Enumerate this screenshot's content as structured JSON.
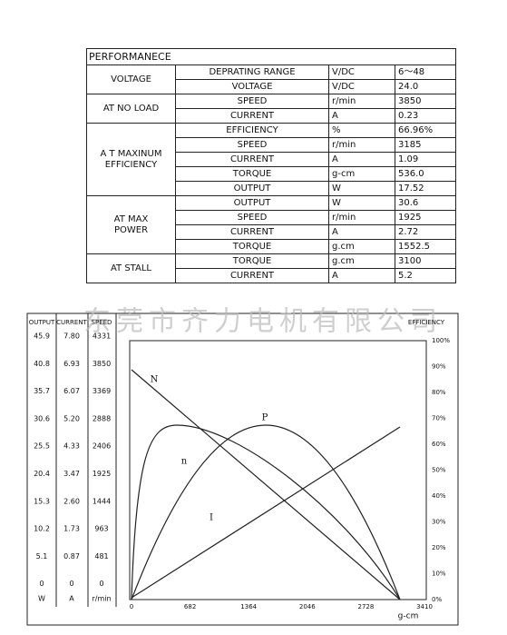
{
  "table": {
    "title": "PERFORMANECE",
    "groups": [
      {
        "label": [
          "VOLTAGE"
        ],
        "rows": [
          [
            "DEPRATING RANGE",
            "V/DC",
            "6～48"
          ],
          [
            "VOLTAGE",
            "V/DC",
            "24.0"
          ]
        ]
      },
      {
        "label": [
          "AT NO LOAD"
        ],
        "rows": [
          [
            "SPEED",
            "r/min",
            "3850"
          ],
          [
            "CURRENT",
            "A",
            "0.23"
          ]
        ]
      },
      {
        "label": [
          "A T MAXINUM",
          "EFFICIENCY"
        ],
        "rows": [
          [
            "EFFICIENCY",
            "%",
            "66.96%"
          ],
          [
            "SPEED",
            "r/min",
            "3185"
          ],
          [
            "CURRENT",
            "A",
            "1.09"
          ],
          [
            "TORQUE",
            "g-cm",
            "536.0"
          ],
          [
            "OUTPUT",
            "W",
            "17.52"
          ]
        ]
      },
      {
        "label": [
          "AT MAX",
          "POWER"
        ],
        "rows": [
          [
            "OUTPUT",
            "W",
            "30.6"
          ],
          [
            "SPEED",
            "r/min",
            "1925"
          ],
          [
            "CURRENT",
            "A",
            "2.72"
          ],
          [
            "TORQUE",
            "g.cm",
            "1552.5"
          ]
        ]
      },
      {
        "label": [
          "AT STALL"
        ],
        "rows": [
          [
            "TORQUE",
            "g.cm",
            "3100"
          ],
          [
            "CURRENT",
            "A",
            "5.2"
          ]
        ]
      }
    ]
  },
  "chart": {
    "watermark": "东莞市齐力电机有限公司",
    "left_headers": [
      "OUTPUT",
      "CURRENT",
      "SPEED"
    ],
    "left_rows": [
      [
        "45.9",
        "7.80",
        "4331"
      ],
      [
        "40.8",
        "6.93",
        "3850"
      ],
      [
        "35.7",
        "6.07",
        "3369"
      ],
      [
        "30.6",
        "5.20",
        "2888"
      ],
      [
        "25.5",
        "4.33",
        "2406"
      ],
      [
        "20.4",
        "3.47",
        "1925"
      ],
      [
        "15.3",
        "2.60",
        "1444"
      ],
      [
        "10.2",
        "1.73",
        "963"
      ],
      [
        "5.1",
        "0.87",
        "481"
      ],
      [
        "0",
        "0",
        "0"
      ]
    ],
    "left_units": [
      "W",
      "A",
      "r/min"
    ],
    "right_header": "EFFICIENCY",
    "right_ticks": [
      "100%",
      "90%",
      "80%",
      "70%",
      "60%",
      "50%",
      "40%",
      "30%",
      "20%",
      "10%",
      "0%"
    ],
    "x_ticks": [
      "0",
      "682",
      "1364",
      "2046",
      "2728",
      "3410"
    ],
    "x_unit": "g-cm",
    "curve_labels": [
      "N",
      "P",
      "n",
      "I"
    ]
  }
}
